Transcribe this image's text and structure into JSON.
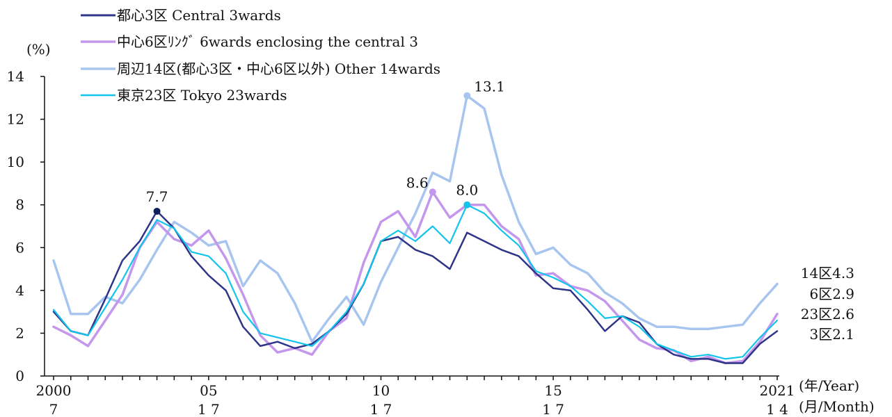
{
  "chart_data": {
    "type": "line",
    "y_unit": "(%)",
    "ylim": [
      0,
      14
    ],
    "y_ticks": [
      "0",
      "2",
      "4",
      "6",
      "8",
      "10",
      "12",
      "14"
    ],
    "x_year_labels": [
      "2000",
      "05",
      "10",
      "15",
      "2021"
    ],
    "x_month_labels": [
      "7",
      "1 7",
      "1 7",
      "1 7",
      "1 4"
    ],
    "x_axis_year_caption": "(年/Year)",
    "x_axis_month_caption": "(月/Month)",
    "x": [
      "2000-07",
      "2001-01",
      "2001-07",
      "2002-01",
      "2002-07",
      "2003-01",
      "2003-07",
      "2004-01",
      "2004-07",
      "2005-01",
      "2005-07",
      "2006-01",
      "2006-07",
      "2007-01",
      "2007-07",
      "2008-01",
      "2008-07",
      "2009-01",
      "2009-07",
      "2010-01",
      "2010-07",
      "2011-01",
      "2011-07",
      "2012-01",
      "2012-07",
      "2013-01",
      "2013-07",
      "2014-01",
      "2014-07",
      "2015-01",
      "2015-07",
      "2016-01",
      "2016-07",
      "2017-01",
      "2017-07",
      "2018-01",
      "2018-07",
      "2019-01",
      "2019-07",
      "2020-01",
      "2020-07",
      "2021-01",
      "2021-04"
    ],
    "series": [
      {
        "name": "都心3区 Central 3wards",
        "color": "#2e3488",
        "values": [
          3.0,
          2.1,
          1.9,
          3.6,
          5.4,
          6.3,
          7.7,
          6.9,
          5.6,
          4.7,
          4.0,
          2.3,
          1.4,
          1.6,
          1.3,
          1.5,
          2.1,
          2.9,
          4.3,
          6.3,
          6.5,
          5.9,
          5.6,
          5.0,
          6.7,
          6.3,
          5.9,
          5.6,
          4.8,
          4.1,
          4.0,
          3.1,
          2.1,
          2.8,
          2.5,
          1.5,
          1.0,
          0.8,
          0.8,
          0.6,
          0.6,
          1.5,
          2.1
        ]
      },
      {
        "name": "中心6区ﾘﾝｸﾞ 6wards enclosing the central 3",
        "color": "#c497ec",
        "values": [
          2.3,
          1.9,
          1.4,
          2.6,
          3.8,
          6.0,
          7.2,
          6.4,
          6.1,
          6.8,
          5.5,
          3.8,
          1.9,
          1.1,
          1.3,
          1.0,
          2.1,
          2.7,
          5.3,
          7.2,
          7.7,
          6.5,
          8.6,
          7.4,
          8.0,
          8.0,
          7.0,
          6.4,
          4.7,
          4.8,
          4.2,
          4.0,
          3.5,
          2.6,
          1.7,
          1.3,
          1.2,
          0.7,
          0.9,
          0.6,
          0.7,
          1.6,
          2.9
        ]
      },
      {
        "name": "周辺14区(都心3区・中心6区以外) Other 14wards",
        "color": "#a7c5ee",
        "values": [
          5.4,
          2.9,
          2.9,
          3.7,
          3.4,
          4.5,
          5.9,
          7.2,
          6.7,
          6.1,
          6.3,
          4.2,
          5.4,
          4.8,
          3.4,
          1.6,
          2.7,
          3.7,
          2.4,
          4.4,
          6.0,
          7.6,
          9.5,
          9.1,
          13.1,
          12.5,
          9.4,
          7.2,
          5.7,
          6.0,
          5.2,
          4.8,
          3.9,
          3.4,
          2.7,
          2.3,
          2.3,
          2.2,
          2.2,
          2.3,
          2.4,
          3.4,
          4.3
        ]
      },
      {
        "name": "東京23区 Tokyo 23wards",
        "color": "#12c3eb",
        "values": [
          3.1,
          2.1,
          1.9,
          3.2,
          4.5,
          6.0,
          7.3,
          6.9,
          5.8,
          5.6,
          4.8,
          3.0,
          2.0,
          1.8,
          1.6,
          1.4,
          2.1,
          3.0,
          4.3,
          6.3,
          6.8,
          6.3,
          7.0,
          6.2,
          8.0,
          7.6,
          6.8,
          6.1,
          4.9,
          4.6,
          4.2,
          3.5,
          2.7,
          2.8,
          2.3,
          1.5,
          1.2,
          0.9,
          1.0,
          0.8,
          0.9,
          1.8,
          2.6
        ]
      }
    ],
    "annotations": [
      {
        "text": "7.7",
        "series": 0,
        "index": 6,
        "marker_color": "#0c1f5c"
      },
      {
        "text": "8.6",
        "series": 1,
        "index": 22,
        "marker_color": "#c497ec"
      },
      {
        "text": "13.1",
        "series": 2,
        "index": 24,
        "marker_color": "#a7c5ee"
      },
      {
        "text": "8.0",
        "series": 3,
        "index": 24,
        "marker_color": "#12c3eb"
      }
    ],
    "end_labels": [
      "14区4.3",
      "6区2.9",
      "23区2.6",
      "3区2.1"
    ]
  }
}
